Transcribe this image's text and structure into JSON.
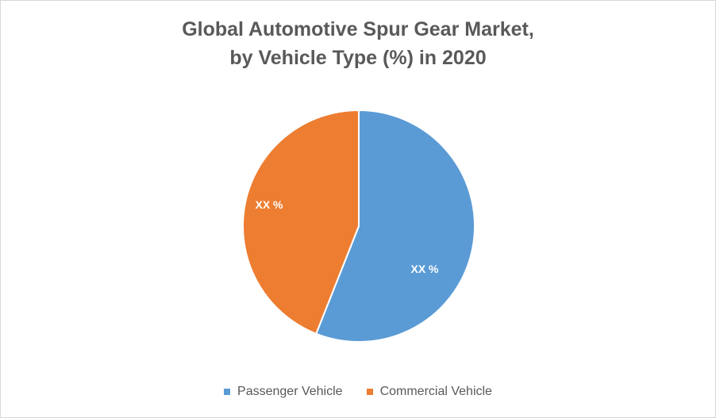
{
  "chart_data": {
    "type": "pie",
    "title_line1": "Global Automotive Spur Gear Market,",
    "title_line2": "by Vehicle Type (%) in 2020",
    "legend_position": "bottom",
    "slices": [
      {
        "name": "Passenger Vehicle",
        "value": 56,
        "label": "XX %",
        "color": "#5b9bd5"
      },
      {
        "name": "Commercial Vehicle",
        "value": 44,
        "label": "XX %",
        "color": "#ed7d31"
      }
    ]
  }
}
